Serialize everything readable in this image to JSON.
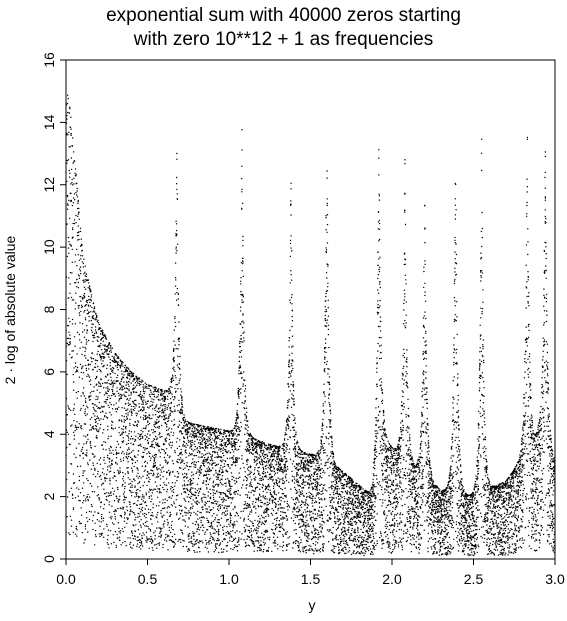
{
  "chart_data": {
    "type": "scatter",
    "title_lines": [
      "exponential sum with 40000 zeros starting",
      "with zero 10**12 + 1 as frequencies"
    ],
    "xlabel": "y",
    "ylabel": "2 · log of absolute value",
    "xlim": [
      0,
      3
    ],
    "ylim": [
      0,
      16
    ],
    "xticks": [
      0,
      0.5,
      1,
      1.5,
      2,
      2.5,
      3
    ],
    "xtick_labels": [
      "0.0",
      "0.5",
      "1.0",
      "1.5",
      "2.0",
      "2.5",
      "3.0"
    ],
    "yticks": [
      0,
      2,
      4,
      6,
      8,
      10,
      12,
      14,
      16
    ],
    "ytick_labels": [
      "0",
      "2",
      "4",
      "6",
      "8",
      "10",
      "12",
      "14",
      "16"
    ],
    "grid": false,
    "marker": "dot",
    "color": "#000000",
    "peaks": [
      {
        "x": 0.0,
        "y": 15.0
      },
      {
        "x": 0.68,
        "y": 13.5
      },
      {
        "x": 1.08,
        "y": 13.9
      },
      {
        "x": 1.38,
        "y": 12.7
      },
      {
        "x": 1.6,
        "y": 14.2
      },
      {
        "x": 1.92,
        "y": 14.2
      },
      {
        "x": 2.08,
        "y": 13.0
      },
      {
        "x": 2.2,
        "y": 12.2
      },
      {
        "x": 2.39,
        "y": 14.2
      },
      {
        "x": 2.55,
        "y": 14.2
      },
      {
        "x": 2.83,
        "y": 14.1
      },
      {
        "x": 2.94,
        "y": 14.1
      }
    ],
    "baseline_curve": [
      {
        "x": 0.0,
        "y": 15.0
      },
      {
        "x": 0.1,
        "y": 9.3
      },
      {
        "x": 0.2,
        "y": 7.5
      },
      {
        "x": 0.3,
        "y": 6.6
      },
      {
        "x": 0.4,
        "y": 6.0
      },
      {
        "x": 0.5,
        "y": 5.6
      },
      {
        "x": 0.65,
        "y": 5.3
      },
      {
        "x": 0.72,
        "y": 4.4
      },
      {
        "x": 1.0,
        "y": 4.1
      },
      {
        "x": 1.3,
        "y": 3.6
      },
      {
        "x": 1.55,
        "y": 3.3
      },
      {
        "x": 1.7,
        "y": 2.8
      },
      {
        "x": 1.88,
        "y": 2.0
      },
      {
        "x": 1.95,
        "y": 3.8
      },
      {
        "x": 2.3,
        "y": 2.2
      },
      {
        "x": 2.5,
        "y": 2.0
      },
      {
        "x": 2.7,
        "y": 2.5
      },
      {
        "x": 2.9,
        "y": 4.0
      },
      {
        "x": 3.0,
        "y": 3.1
      }
    ]
  }
}
